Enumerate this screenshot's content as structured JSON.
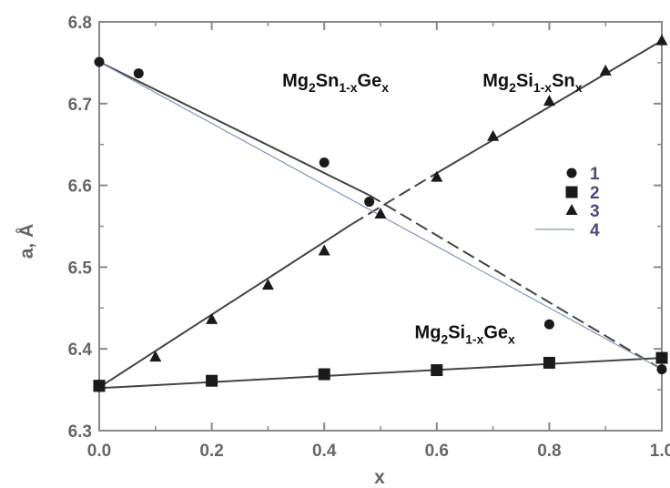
{
  "chart_data": {
    "type": "scatter",
    "xlabel": "x",
    "ylabel": "a, Å",
    "xlim": [
      0.0,
      1.0
    ],
    "ylim": [
      6.3,
      6.8
    ],
    "x_ticks": [
      "0.0",
      "0.2",
      "0.4",
      "0.6",
      "0.8",
      "1.0"
    ],
    "y_ticks": [
      "6.3",
      "6.4",
      "6.5",
      "6.6",
      "6.7",
      "6.8"
    ],
    "grid": false,
    "legend_position": "right",
    "legend": [
      {
        "label": "1",
        "marker": "circle"
      },
      {
        "label": "2",
        "marker": "square"
      },
      {
        "label": "3",
        "marker": "triangle"
      },
      {
        "label": "4",
        "marker": "line"
      }
    ],
    "annotations": [
      {
        "base": "Mg",
        "parts": [
          {
            "t": "2",
            "sub": true
          },
          {
            "t": "Sn",
            "sub": false
          },
          {
            "t": "1-x",
            "sub": true
          },
          {
            "t": "Ge",
            "sub": false
          },
          {
            "t": "x",
            "sub": true
          }
        ],
        "at": [
          0.42,
          6.721
        ]
      },
      {
        "base": "Mg",
        "parts": [
          {
            "t": "2",
            "sub": true
          },
          {
            "t": "Si",
            "sub": false
          },
          {
            "t": "1-x",
            "sub": true
          },
          {
            "t": "Sn",
            "sub": false
          },
          {
            "t": "x",
            "sub": true
          }
        ],
        "at": [
          0.77,
          6.721
        ]
      },
      {
        "base": "Mg",
        "parts": [
          {
            "t": "2",
            "sub": true
          },
          {
            "t": "Si",
            "sub": false
          },
          {
            "t": "1-x",
            "sub": true
          },
          {
            "t": "Ge",
            "sub": false
          },
          {
            "t": "x",
            "sub": true
          }
        ],
        "at": [
          0.65,
          6.413
        ]
      }
    ],
    "series": [
      {
        "name": "1",
        "marker": "circle",
        "x": [
          0.0,
          0.07,
          0.4,
          0.48,
          0.8,
          1.0
        ],
        "y": [
          6.751,
          6.737,
          6.628,
          6.58,
          6.43,
          6.375
        ]
      },
      {
        "name": "2",
        "marker": "square",
        "x": [
          0.0,
          0.2,
          0.4,
          0.6,
          0.8,
          1.0
        ],
        "y": [
          6.355,
          6.361,
          6.369,
          6.374,
          6.383,
          6.389
        ]
      },
      {
        "name": "3",
        "marker": "triangle",
        "x": [
          0.0,
          0.1,
          0.2,
          0.3,
          0.4,
          0.5,
          0.6,
          0.7,
          0.8,
          0.9,
          1.0
        ],
        "y": [
          6.353,
          6.39,
          6.436,
          6.478,
          6.52,
          6.565,
          6.61,
          6.66,
          6.703,
          6.74,
          6.777
        ]
      }
    ],
    "fit_lines": [
      {
        "style": "solid",
        "x": [
          0.0,
          0.48
        ],
        "y": [
          6.751,
          6.588
        ]
      },
      {
        "style": "dashed",
        "x": [
          0.48,
          1.0
        ],
        "y": [
          6.588,
          6.375
        ]
      },
      {
        "style": "solid",
        "x": [
          0.0,
          0.45
        ],
        "y": [
          6.353,
          6.553
        ]
      },
      {
        "style": "dashed",
        "x": [
          0.45,
          0.59
        ],
        "y": [
          6.553,
          6.611
        ]
      },
      {
        "style": "solid",
        "x": [
          0.59,
          1.0
        ],
        "y": [
          6.611,
          6.777
        ]
      },
      {
        "style": "solid",
        "x": [
          0.0,
          1.0
        ],
        "y": [
          6.352,
          6.389
        ]
      },
      {
        "style": "thin",
        "x": [
          0.0,
          1.0
        ],
        "y": [
          6.751,
          6.375
        ]
      }
    ]
  },
  "colors": {
    "axis": "#888888",
    "data": "#1a1a1a",
    "line": "#444444",
    "thin_line": "#7f97b8"
  }
}
